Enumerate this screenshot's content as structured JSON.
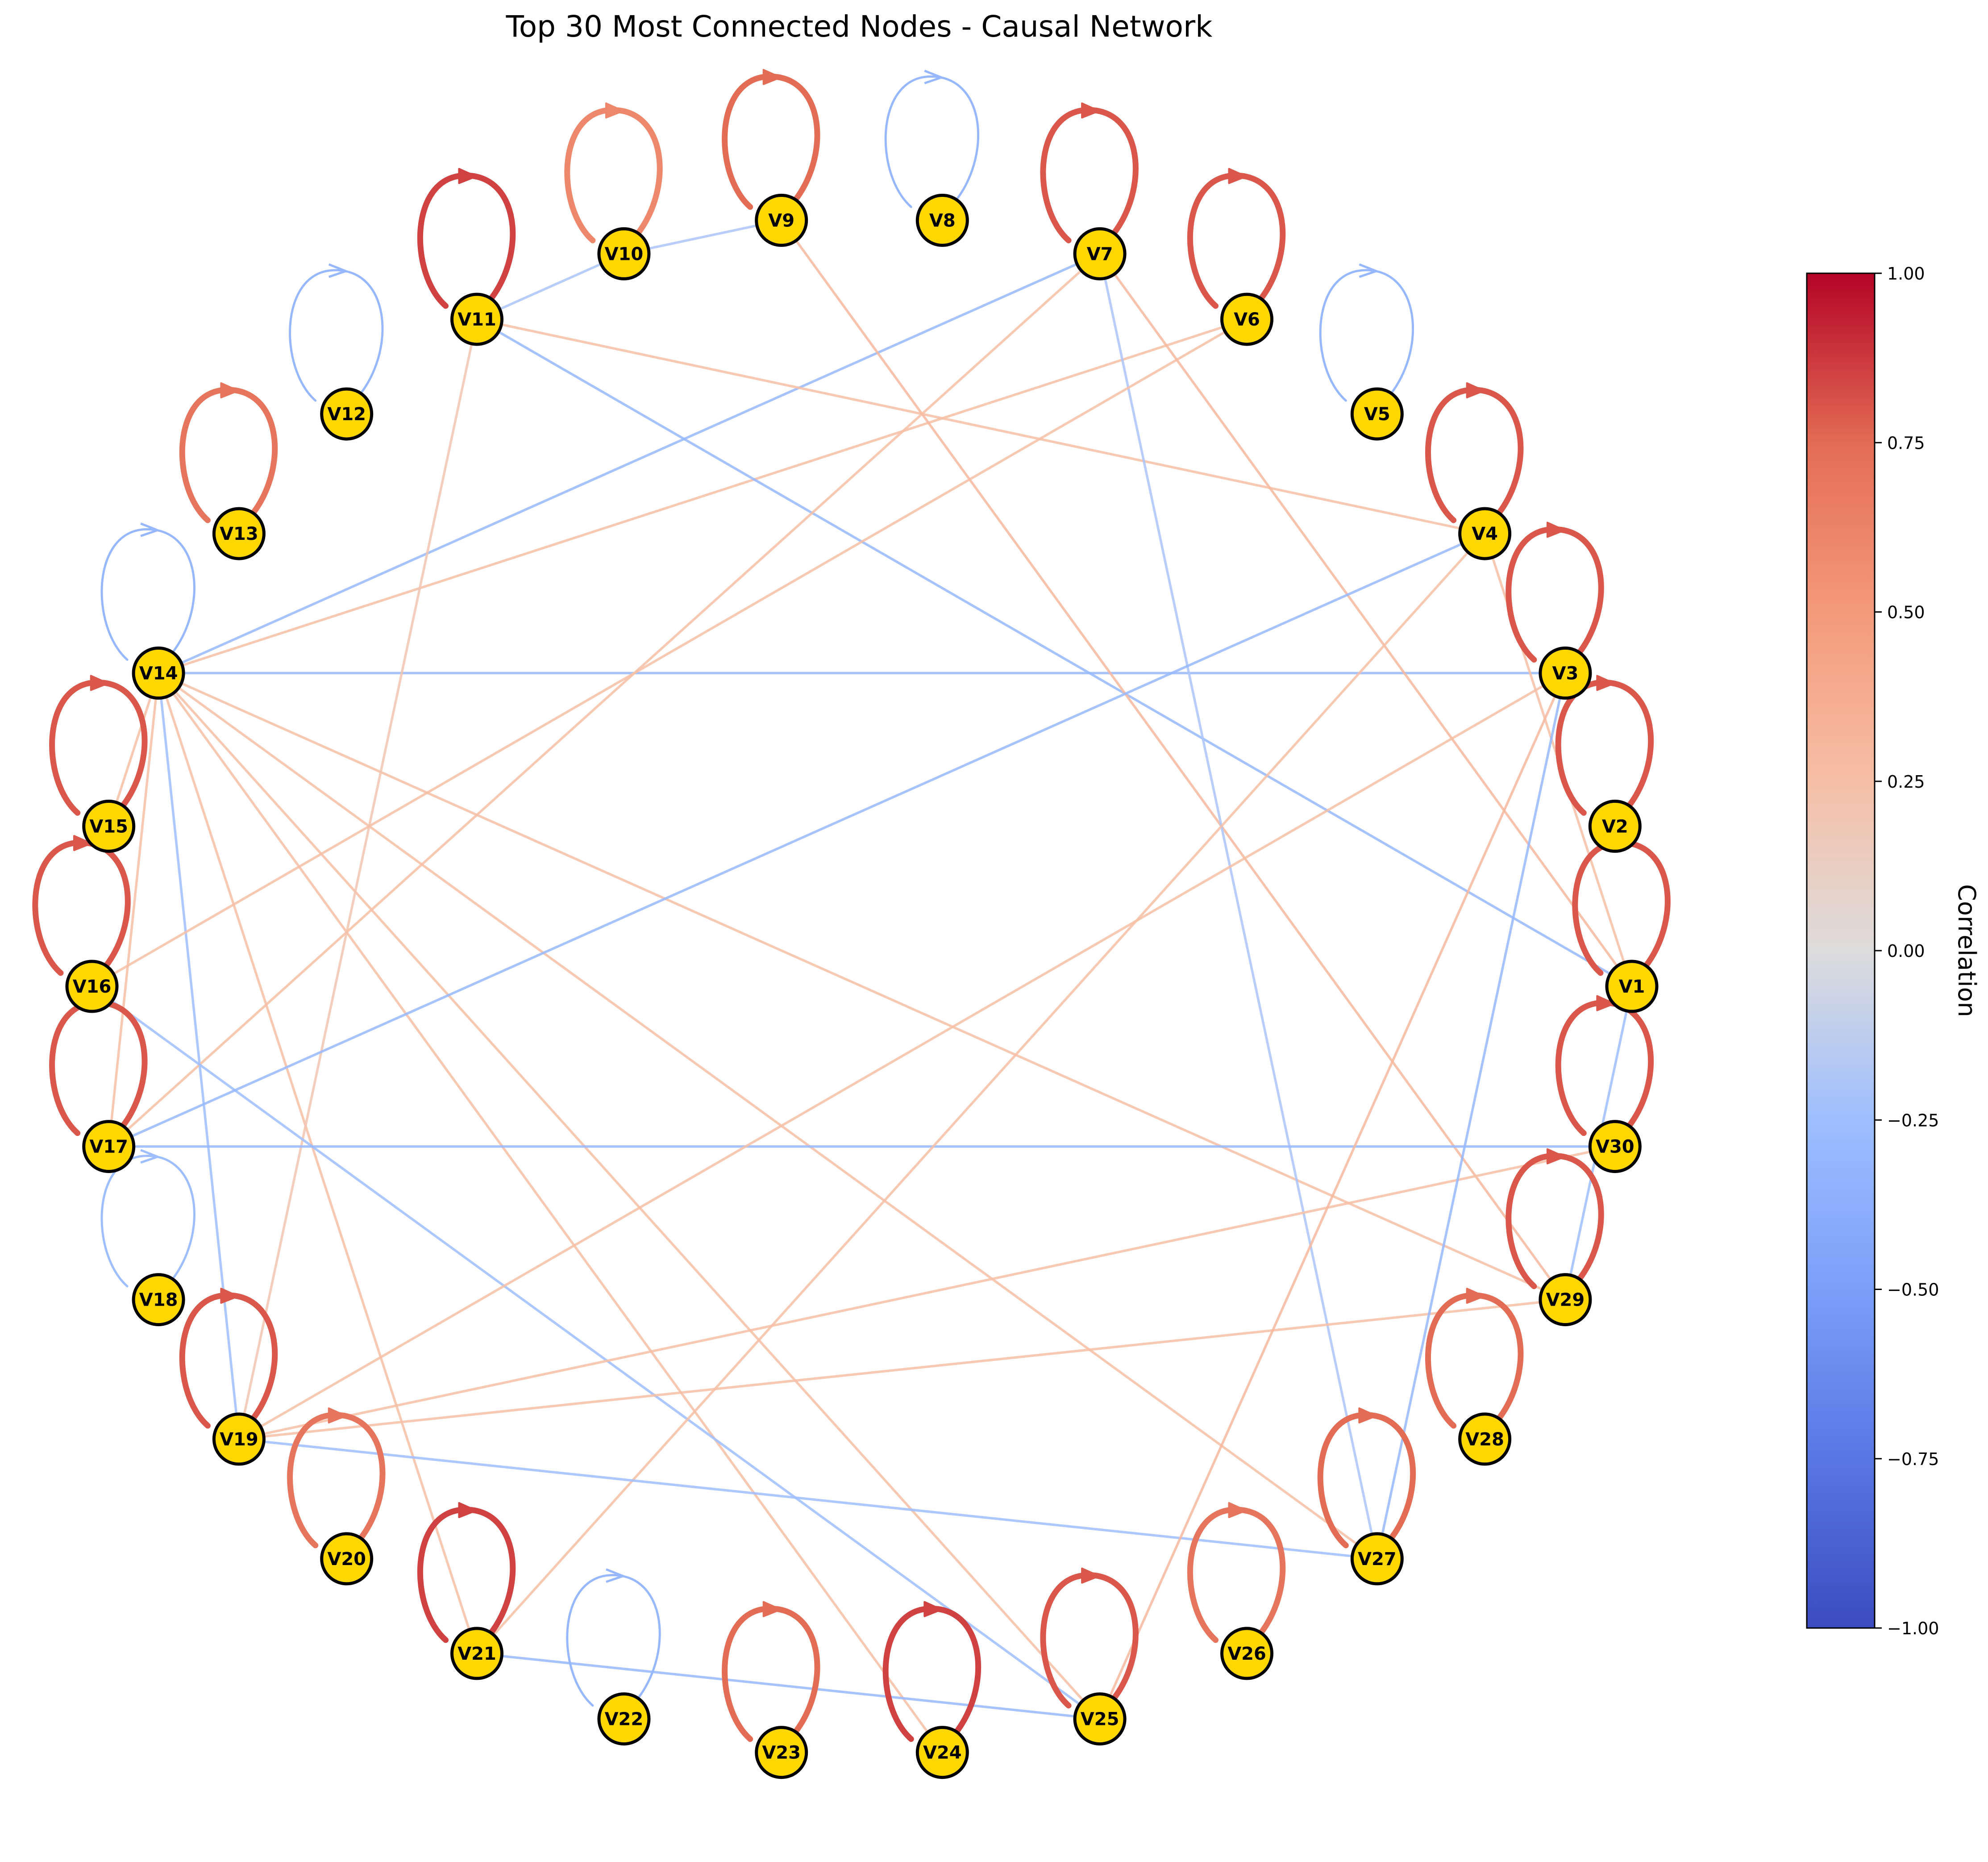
{
  "title": "Top 30 Most Connected Nodes - Causal Network",
  "colorbar": {
    "label": "Correlation",
    "min": -1.0,
    "max": 1.0,
    "ticks": [
      {
        "value": 1.0,
        "label": "1.00"
      },
      {
        "value": 0.75,
        "label": "0.75"
      },
      {
        "value": 0.5,
        "label": "0.50"
      },
      {
        "value": 0.25,
        "label": "0.25"
      },
      {
        "value": 0.0,
        "label": "0.00"
      },
      {
        "value": -0.25,
        "label": "−0.25"
      },
      {
        "value": -0.5,
        "label": "−0.50"
      },
      {
        "value": -0.75,
        "label": "−0.75"
      },
      {
        "value": -1.0,
        "label": "−1.00"
      }
    ],
    "colormap": "coolwarm"
  },
  "node_style": {
    "fill": "#FFD700",
    "stroke": "#000000"
  },
  "nodes": [
    "V1",
    "V2",
    "V3",
    "V4",
    "V5",
    "V6",
    "V7",
    "V8",
    "V9",
    "V10",
    "V11",
    "V12",
    "V13",
    "V14",
    "V15",
    "V16",
    "V17",
    "V18",
    "V19",
    "V20",
    "V21",
    "V22",
    "V23",
    "V24",
    "V25",
    "V26",
    "V27",
    "V28",
    "V29",
    "V30"
  ],
  "self_loops": [
    {
      "node": "V1",
      "corr": 0.8
    },
    {
      "node": "V2",
      "corr": 0.8
    },
    {
      "node": "V3",
      "corr": 0.8
    },
    {
      "node": "V4",
      "corr": 0.8
    },
    {
      "node": "V5",
      "corr": -0.3
    },
    {
      "node": "V6",
      "corr": 0.8
    },
    {
      "node": "V7",
      "corr": 0.8
    },
    {
      "node": "V8",
      "corr": -0.3
    },
    {
      "node": "V9",
      "corr": 0.75
    },
    {
      "node": "V10",
      "corr": 0.6
    },
    {
      "node": "V11",
      "corr": 0.85
    },
    {
      "node": "V12",
      "corr": -0.3
    },
    {
      "node": "V13",
      "corr": 0.7
    },
    {
      "node": "V14",
      "corr": -0.3
    },
    {
      "node": "V15",
      "corr": 0.8
    },
    {
      "node": "V16",
      "corr": 0.8
    },
    {
      "node": "V17",
      "corr": 0.8
    },
    {
      "node": "V18",
      "corr": -0.25
    },
    {
      "node": "V19",
      "corr": 0.8
    },
    {
      "node": "V20",
      "corr": 0.7
    },
    {
      "node": "V21",
      "corr": 0.85
    },
    {
      "node": "V22",
      "corr": -0.3
    },
    {
      "node": "V23",
      "corr": 0.75
    },
    {
      "node": "V24",
      "corr": 0.85
    },
    {
      "node": "V25",
      "corr": 0.8
    },
    {
      "node": "V26",
      "corr": 0.7
    },
    {
      "node": "V27",
      "corr": 0.75
    },
    {
      "node": "V28",
      "corr": 0.75
    },
    {
      "node": "V29",
      "corr": 0.8
    },
    {
      "node": "V30",
      "corr": 0.8
    }
  ],
  "edges": [
    {
      "source": "V14",
      "target": "V7",
      "corr": -0.3
    },
    {
      "source": "V14",
      "target": "V6",
      "corr": 0.25
    },
    {
      "source": "V14",
      "target": "V3",
      "corr": -0.3
    },
    {
      "source": "V14",
      "target": "V15",
      "corr": 0.25
    },
    {
      "source": "V14",
      "target": "V17",
      "corr": 0.25
    },
    {
      "source": "V14",
      "target": "V19",
      "corr": -0.25
    },
    {
      "source": "V14",
      "target": "V21",
      "corr": 0.25
    },
    {
      "source": "V14",
      "target": "V24",
      "corr": 0.25
    },
    {
      "source": "V14",
      "target": "V25",
      "corr": 0.25
    },
    {
      "source": "V14",
      "target": "V27",
      "corr": 0.25
    },
    {
      "source": "V14",
      "target": "V29",
      "corr": 0.25
    },
    {
      "source": "V10",
      "target": "V9",
      "corr": -0.2
    },
    {
      "source": "V11",
      "target": "V10",
      "corr": -0.2
    },
    {
      "source": "V11",
      "target": "V4",
      "corr": 0.25
    },
    {
      "source": "V11",
      "target": "V1",
      "corr": -0.3
    },
    {
      "source": "V19",
      "target": "V11",
      "corr": 0.2
    },
    {
      "source": "V9",
      "target": "V29",
      "corr": 0.3
    },
    {
      "source": "V7",
      "target": "V27",
      "corr": -0.2
    },
    {
      "source": "V7",
      "target": "V1",
      "corr": 0.3
    },
    {
      "source": "V17",
      "target": "V7",
      "corr": 0.25
    },
    {
      "source": "V16",
      "target": "V6",
      "corr": 0.25
    },
    {
      "source": "V16",
      "target": "V25",
      "corr": -0.25
    },
    {
      "source": "V17",
      "target": "V4",
      "corr": -0.3
    },
    {
      "source": "V17",
      "target": "V30",
      "corr": -0.3
    },
    {
      "source": "V4",
      "target": "V1",
      "corr": 0.25
    },
    {
      "source": "V21",
      "target": "V4",
      "corr": 0.25
    },
    {
      "source": "V19",
      "target": "V3",
      "corr": 0.25
    },
    {
      "source": "V19",
      "target": "V30",
      "corr": 0.25
    },
    {
      "source": "V19",
      "target": "V29",
      "corr": 0.25
    },
    {
      "source": "V19",
      "target": "V27",
      "corr": -0.25
    },
    {
      "source": "V25",
      "target": "V3",
      "corr": 0.3
    },
    {
      "source": "V27",
      "target": "V3",
      "corr": -0.3
    },
    {
      "source": "V29",
      "target": "V1",
      "corr": -0.25
    },
    {
      "source": "V21",
      "target": "V25",
      "corr": -0.3
    }
  ]
}
